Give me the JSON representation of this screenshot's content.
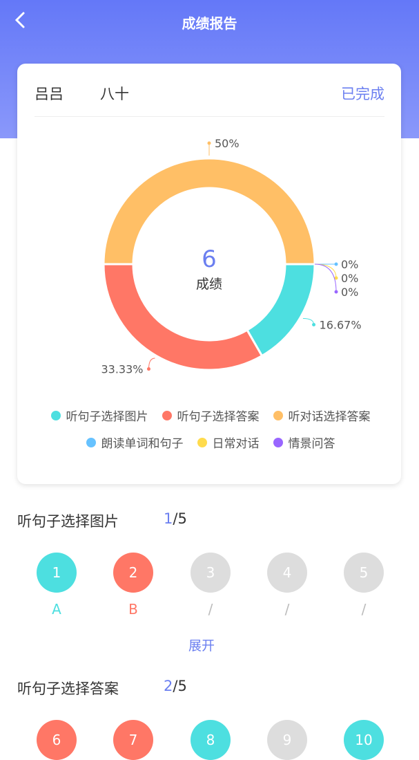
{
  "header": {
    "title": "成绩报告"
  },
  "card": {
    "name": "吕吕",
    "grade": "八十",
    "status": "已完成"
  },
  "chart_data": {
    "type": "pie",
    "donut": true,
    "center_value": 6,
    "center_label": "成绩",
    "series": [
      {
        "name": "听句子选择图片",
        "color": "#4ddfe0",
        "value": 16.67,
        "value_label": "16.67%"
      },
      {
        "name": "听句子选择答案",
        "color": "#ff7766",
        "value": 33.33,
        "value_label": "33.33%"
      },
      {
        "name": "听对话选择答案",
        "color": "#ffbf66",
        "value": 50,
        "value_label": "50%"
      },
      {
        "name": "朗读单词和句子",
        "color": "#66c2ff",
        "value": 0,
        "value_label": "0%"
      },
      {
        "name": "日常对话",
        "color": "#ffdb4d",
        "value": 0,
        "value_label": "0%"
      },
      {
        "name": "情景问答",
        "color": "#9966ff",
        "value": 0,
        "value_label": "0%"
      }
    ]
  },
  "sections": [
    {
      "title": "听句子选择图片",
      "correct": 1,
      "separator": "/",
      "total": 5,
      "questions": [
        {
          "number": 1,
          "status": "correct",
          "answer": "A"
        },
        {
          "number": 2,
          "status": "wrong",
          "answer": "B"
        },
        {
          "number": 3,
          "status": "unanswered",
          "answer": "/"
        },
        {
          "number": 4,
          "status": "unanswered",
          "answer": "/"
        },
        {
          "number": 5,
          "status": "unanswered",
          "answer": "/"
        }
      ],
      "expand": "展开"
    },
    {
      "title": "听句子选择答案",
      "correct": 2,
      "separator": "/",
      "total": 5,
      "questions": [
        {
          "number": 6,
          "status": "wrong"
        },
        {
          "number": 7,
          "status": "wrong"
        },
        {
          "number": 8,
          "status": "correct"
        },
        {
          "number": 9,
          "status": "unanswered"
        },
        {
          "number": 10,
          "status": "correct"
        }
      ]
    }
  ]
}
